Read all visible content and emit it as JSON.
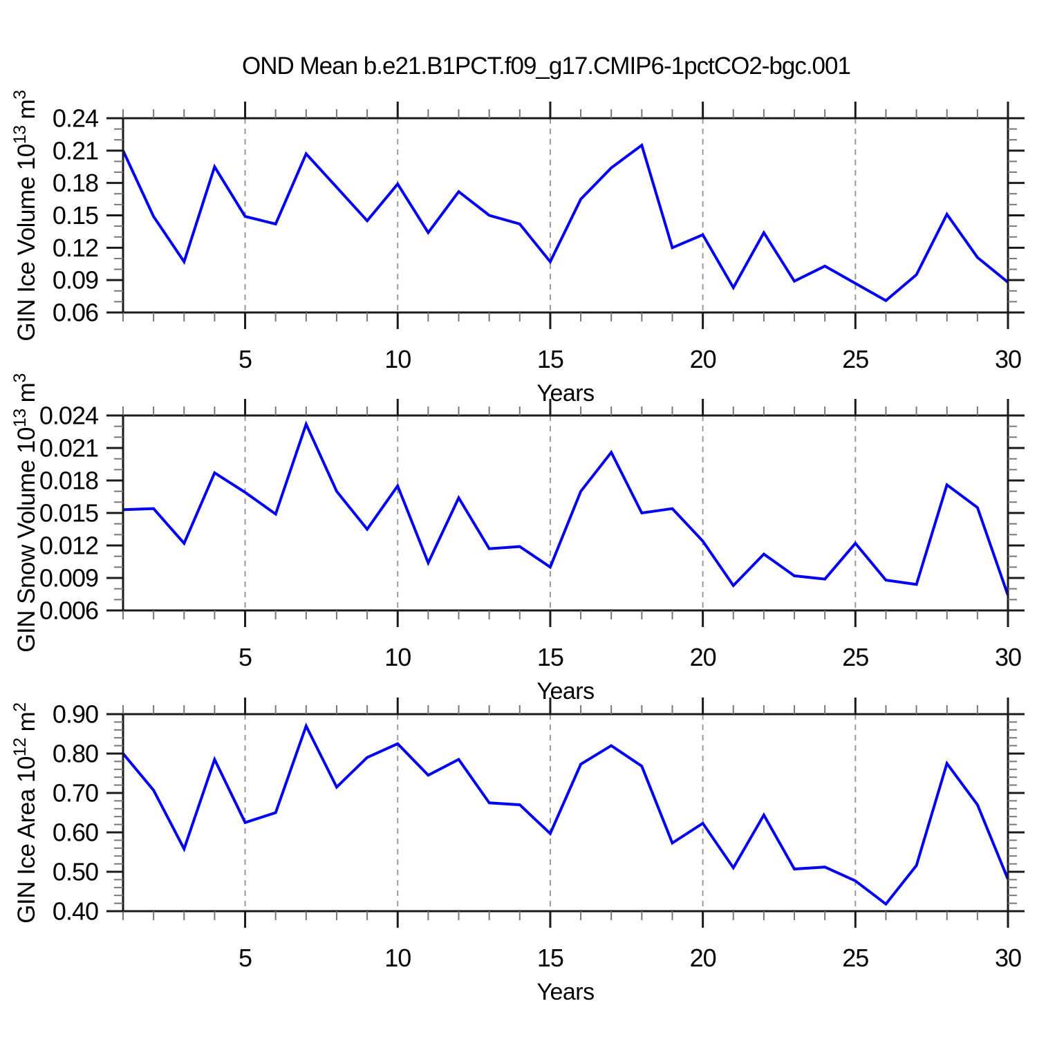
{
  "title": "OND Mean b.e21.B1PCT.f09_g17.CMIP6-1pctCO2-bgc.001",
  "style": {
    "line_color": "#0202f0",
    "axis_color": "#1a1a1a",
    "minor_tick_color": "#777777",
    "grid_color": "#999999",
    "text_color": "#000000",
    "background": "#ffffff"
  },
  "chart_data": [
    {
      "type": "line",
      "panel": "top",
      "ylabel": "GIN Ice Volume 10^13 m^3",
      "ylabel_parts": {
        "prefix": "GIN Ice Volume 10",
        "sup1": "13",
        "mid": "m",
        "sup2": "3"
      },
      "xlabel": "Years",
      "x": [
        1,
        2,
        3,
        4,
        5,
        6,
        7,
        8,
        9,
        10,
        11,
        12,
        13,
        14,
        15,
        16,
        17,
        18,
        19,
        20,
        21,
        22,
        23,
        24,
        25,
        26,
        27,
        28,
        29,
        30
      ],
      "values": [
        0.21,
        0.149,
        0.107,
        0.195,
        0.149,
        0.142,
        0.207,
        0.176,
        0.145,
        0.179,
        0.134,
        0.172,
        0.15,
        0.142,
        0.107,
        0.165,
        0.194,
        0.215,
        0.12,
        0.132,
        0.083,
        0.134,
        0.089,
        0.103,
        0.087,
        0.071,
        0.095,
        0.151,
        0.111,
        0.088
      ],
      "xlim": [
        1,
        30
      ],
      "ylim": [
        0.06,
        0.24
      ],
      "yticks": [
        0.06,
        0.09,
        0.12,
        0.15,
        0.18,
        0.21,
        0.24
      ],
      "ytick_labels": [
        "0.06",
        "0.09",
        "0.12",
        "0.15",
        "0.18",
        "0.21",
        "0.24"
      ],
      "yminor_step": 0.01,
      "xticks": [
        5,
        10,
        15,
        20,
        25,
        30
      ],
      "xtick_labels": [
        "5",
        "10",
        "15",
        "20",
        "25",
        "30"
      ],
      "xminor_step": 1,
      "grid_x": [
        5,
        10,
        15,
        20,
        25
      ],
      "grid": "dashed-vertical",
      "legend": "none"
    },
    {
      "type": "line",
      "panel": "middle",
      "ylabel": "GIN Snow Volume 10^13 m^3",
      "ylabel_parts": {
        "prefix": "GIN Snow Volume 10",
        "sup1": "13",
        "mid": "m",
        "sup2": "3"
      },
      "xlabel": "Years",
      "x": [
        1,
        2,
        3,
        4,
        5,
        6,
        7,
        8,
        9,
        10,
        11,
        12,
        13,
        14,
        15,
        16,
        17,
        18,
        19,
        20,
        21,
        22,
        23,
        24,
        25,
        26,
        27,
        28,
        29,
        30
      ],
      "values": [
        0.0153,
        0.0154,
        0.0122,
        0.0187,
        0.0169,
        0.0149,
        0.0232,
        0.017,
        0.0135,
        0.0175,
        0.0104,
        0.0164,
        0.0117,
        0.0119,
        0.01,
        0.017,
        0.0206,
        0.015,
        0.0154,
        0.0124,
        0.0083,
        0.0112,
        0.0092,
        0.0089,
        0.0122,
        0.0088,
        0.0084,
        0.0176,
        0.0155,
        0.0074
      ],
      "xlim": [
        1,
        30
      ],
      "ylim": [
        0.006,
        0.024
      ],
      "yticks": [
        0.006,
        0.009,
        0.012,
        0.015,
        0.018,
        0.021,
        0.024
      ],
      "ytick_labels": [
        "0.006",
        "0.009",
        "0.012",
        "0.015",
        "0.018",
        "0.021",
        "0.024"
      ],
      "yminor_step": 0.001,
      "xticks": [
        5,
        10,
        15,
        20,
        25,
        30
      ],
      "xtick_labels": [
        "5",
        "10",
        "15",
        "20",
        "25",
        "30"
      ],
      "xminor_step": 1,
      "grid_x": [
        5,
        10,
        15,
        20,
        25
      ],
      "grid": "dashed-vertical",
      "legend": "none"
    },
    {
      "type": "line",
      "panel": "bottom",
      "ylabel": "GIN Ice Area 10^12 m^2",
      "ylabel_parts": {
        "prefix": "GIN Ice Area 10",
        "sup1": "12",
        "mid": "m",
        "sup2": "2"
      },
      "xlabel": "Years",
      "x": [
        1,
        2,
        3,
        4,
        5,
        6,
        7,
        8,
        9,
        10,
        11,
        12,
        13,
        14,
        15,
        16,
        17,
        18,
        19,
        20,
        21,
        22,
        23,
        24,
        25,
        26,
        27,
        28,
        29,
        30
      ],
      "values": [
        0.8,
        0.707,
        0.558,
        0.785,
        0.625,
        0.65,
        0.87,
        0.715,
        0.79,
        0.825,
        0.745,
        0.785,
        0.675,
        0.67,
        0.597,
        0.773,
        0.82,
        0.768,
        0.573,
        0.623,
        0.51,
        0.644,
        0.507,
        0.512,
        0.477,
        0.418,
        0.516,
        0.775,
        0.67,
        0.481
      ],
      "xlim": [
        1,
        30
      ],
      "ylim": [
        0.4,
        0.9
      ],
      "yticks": [
        0.4,
        0.5,
        0.6,
        0.7,
        0.8,
        0.9
      ],
      "ytick_labels": [
        "0.40",
        "0.50",
        "0.60",
        "0.70",
        "0.80",
        "0.90"
      ],
      "yminor_step": 0.02,
      "xticks": [
        5,
        10,
        15,
        20,
        25,
        30
      ],
      "xtick_labels": [
        "5",
        "10",
        "15",
        "20",
        "25",
        "30"
      ],
      "xminor_step": 1,
      "grid_x": [
        5,
        10,
        15,
        20,
        25
      ],
      "grid": "dashed-vertical",
      "legend": "none"
    }
  ]
}
